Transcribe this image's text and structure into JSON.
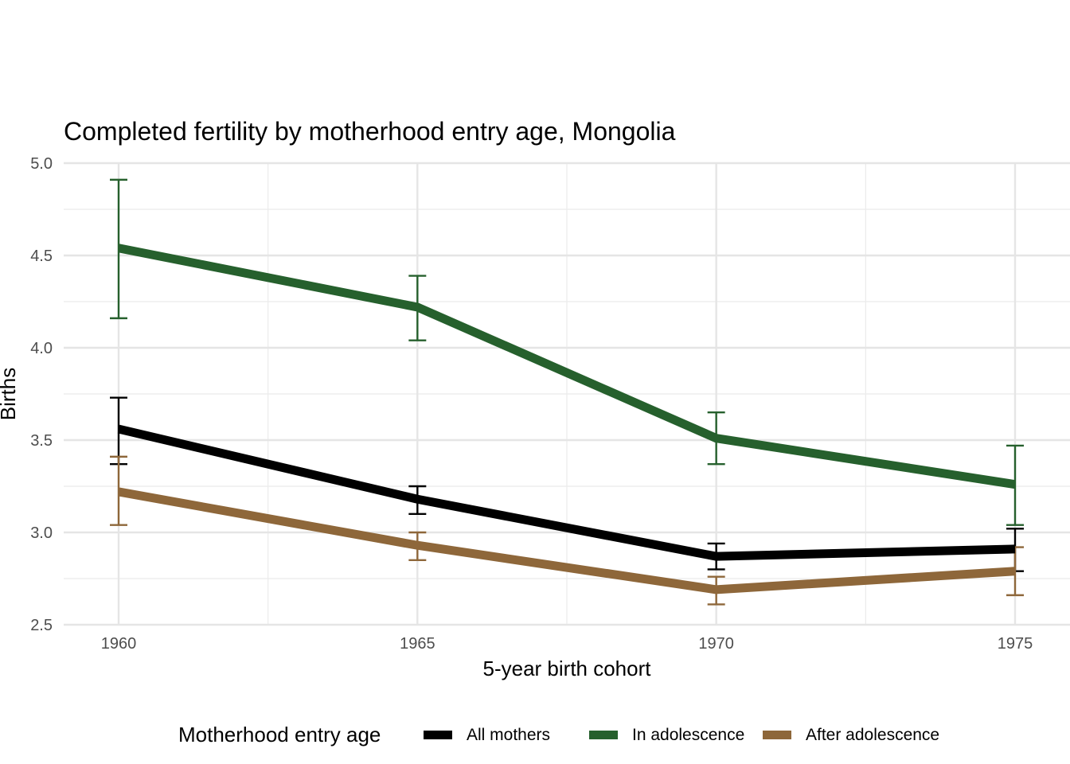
{
  "chart_data": {
    "type": "line",
    "title": "Completed fertility by motherhood entry age,  Mongolia",
    "xlabel": "5-year birth cohort",
    "ylabel": "Births",
    "x": [
      1960,
      1965,
      1970,
      1975
    ],
    "x_tick_labels": [
      "1960",
      "1965",
      "1970",
      "1975"
    ],
    "xlim": [
      1959.1,
      1975.9
    ],
    "ylim": [
      2.5,
      5.0
    ],
    "y_ticks": [
      2.5,
      3.0,
      3.5,
      4.0,
      4.5,
      5.0
    ],
    "y_tick_labels": [
      "2.5",
      "3.0",
      "3.5",
      "4.0",
      "4.5",
      "5.0"
    ],
    "grid": true,
    "legend": {
      "title": "Motherhood entry age",
      "position": "bottom"
    },
    "series": [
      {
        "name": "All mothers",
        "color": "#000000",
        "values": [
          3.56,
          3.18,
          2.87,
          2.91
        ],
        "lower": [
          3.37,
          3.1,
          2.8,
          2.79
        ],
        "upper": [
          3.73,
          3.25,
          2.94,
          3.02
        ]
      },
      {
        "name": "In adolescence",
        "color": "#26602D",
        "values": [
          4.54,
          4.22,
          3.51,
          3.26
        ],
        "lower": [
          4.16,
          4.04,
          3.37,
          3.04
        ],
        "upper": [
          4.91,
          4.39,
          3.65,
          3.47
        ]
      },
      {
        "name": "After adolescence",
        "color": "#8E673A",
        "values": [
          3.22,
          2.93,
          2.69,
          2.79
        ],
        "lower": [
          3.04,
          2.85,
          2.61,
          2.66
        ],
        "upper": [
          3.41,
          3.0,
          2.76,
          2.92
        ]
      }
    ]
  }
}
